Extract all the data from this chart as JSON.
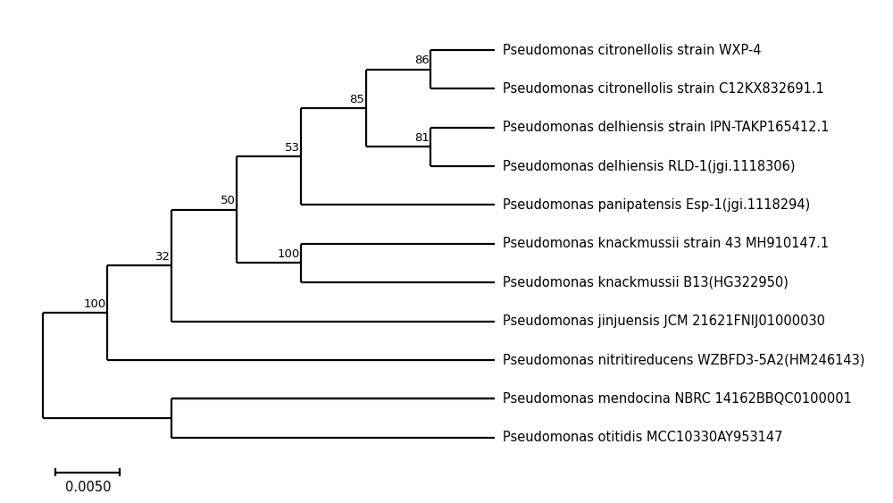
{
  "taxa": [
    "Pseudomonas citronellolis strain WXP-4",
    "Pseudomonas citronellolis strain C12KX832691.1",
    "Pseudomonas delhiensis strain IPN-TAKP165412.1",
    "Pseudomonas delhiensis RLD-1(jgi.1118306)",
    "Pseudomonas panipatensis Esp-1(jgi.1118294)",
    "Pseudomonas knackmussii strain 43 MH910147.1",
    "Pseudomonas knackmussii B13(HG322950)",
    "Pseudomonas jinjuensis JCM 21621FNIJ01000030",
    "Pseudomonas nitritireducens WZBFD3-5A2(HM246143)",
    "Pseudomonas mendocina NBRC 14162BBQC0100001",
    "Pseudomonas otitidis MCC10330AY953147"
  ],
  "bootstrap_labels": [
    "86",
    "85",
    "81",
    "53",
    "50",
    "100",
    "32",
    "100"
  ],
  "line_color": "#000000",
  "bg_color": "#ffffff",
  "text_color": "#000000",
  "fontsize": 10.5,
  "bootstrap_fontsize": 9.5,
  "scale_bar_label": "0.0050",
  "scale_bar_value": 0.005,
  "figsize": [
    10.0,
    5.63
  ],
  "dpi": 100,
  "xlim": [
    -0.003,
    0.056
  ],
  "ylim": [
    -1.6,
    11.2
  ]
}
